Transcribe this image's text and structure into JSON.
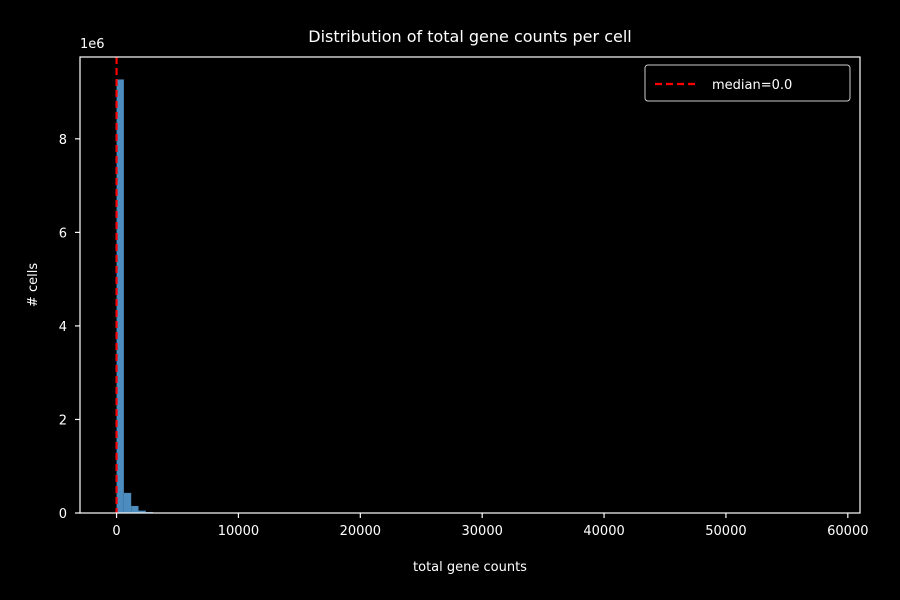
{
  "chart_data": {
    "type": "bar",
    "title": "Distribution of total gene counts per cell",
    "xlabel": "total gene counts",
    "ylabel": "# cells",
    "y_offset_label": "1e6",
    "xlim": [
      -3000,
      61000
    ],
    "ylim": [
      0,
      9.75
    ],
    "x_ticks": [
      0,
      10000,
      20000,
      30000,
      40000,
      50000,
      60000
    ],
    "x_tick_labels": [
      "0",
      "10000",
      "20000",
      "30000",
      "40000",
      "50000",
      "60000"
    ],
    "y_ticks": [
      0,
      2,
      4,
      6,
      8
    ],
    "y_tick_labels": [
      "0",
      "2",
      "4",
      "6",
      "8"
    ],
    "bin_width": 600,
    "bins": [
      {
        "x0": 0,
        "x1": 600,
        "value": 9.27
      },
      {
        "x0": 600,
        "x1": 1200,
        "value": 0.43
      },
      {
        "x0": 1200,
        "x1": 1800,
        "value": 0.15
      },
      {
        "x0": 1800,
        "x1": 2400,
        "value": 0.05
      },
      {
        "x0": 2400,
        "x1": 3000,
        "value": 0.02
      },
      {
        "x0": 3000,
        "x1": 3600,
        "value": 0.01
      }
    ],
    "median_line": {
      "x": 0,
      "label": "median=0.0",
      "color": "#ff0000",
      "style": "dashed"
    },
    "bar_color": "#4c8cbf",
    "grid": false,
    "legend_position": "top-right",
    "colors": {
      "background": "#000000",
      "axes": "#ffffff",
      "text": "#ffffff"
    }
  }
}
